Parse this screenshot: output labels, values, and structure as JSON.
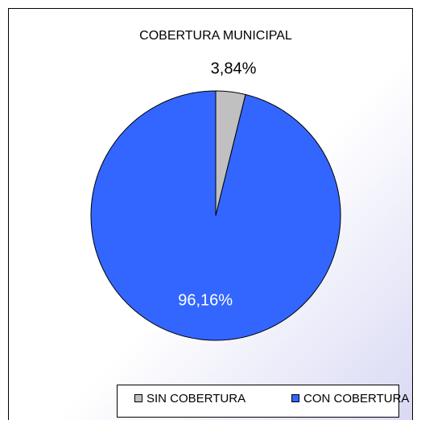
{
  "chart_data": {
    "type": "pie",
    "title": "COBERTURA MUNICIPAL",
    "categories": [
      "SIN COBERTURA",
      "CON COBERTURA"
    ],
    "values": [
      3.84,
      96.16
    ],
    "value_labels": [
      "3,84%",
      "96,16%"
    ],
    "colors": [
      "#c0c0c0",
      "#3366ff"
    ],
    "legend": "bottom"
  }
}
